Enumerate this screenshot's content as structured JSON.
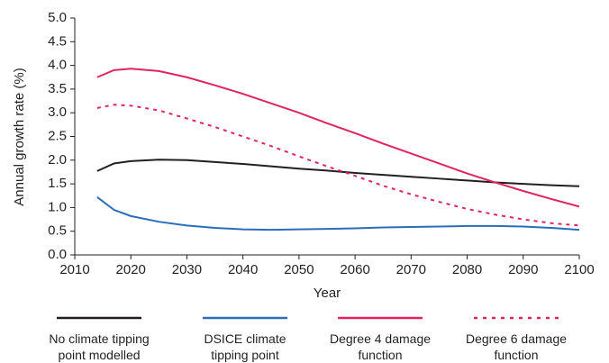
{
  "chart_data": {
    "type": "line",
    "xlabel": "Year",
    "ylabel": "Annual growth rate (%)",
    "x": [
      2014,
      2017,
      2020,
      2025,
      2030,
      2035,
      2040,
      2045,
      2050,
      2055,
      2060,
      2065,
      2070,
      2075,
      2080,
      2085,
      2090,
      2095,
      2100
    ],
    "series": [
      {
        "name": "No climate tipping point modelled",
        "color": "#231f20",
        "dashed": false,
        "values": [
          1.77,
          1.93,
          1.98,
          2.01,
          2.0,
          1.96,
          1.92,
          1.87,
          1.82,
          1.78,
          1.73,
          1.69,
          1.65,
          1.61,
          1.57,
          1.53,
          1.5,
          1.47,
          1.45
        ]
      },
      {
        "name": "DSICE climate tipping point",
        "color": "#2a6ebb",
        "dashed": false,
        "values": [
          1.22,
          0.95,
          0.82,
          0.7,
          0.62,
          0.57,
          0.54,
          0.53,
          0.54,
          0.55,
          0.56,
          0.58,
          0.59,
          0.6,
          0.61,
          0.61,
          0.6,
          0.57,
          0.53
        ]
      },
      {
        "name": "Degree 4 damage function",
        "color": "#e0245e",
        "dashed": false,
        "values": [
          3.75,
          3.9,
          3.93,
          3.88,
          3.75,
          3.58,
          3.4,
          3.2,
          3.0,
          2.78,
          2.57,
          2.35,
          2.14,
          1.93,
          1.72,
          1.53,
          1.35,
          1.18,
          1.02
        ]
      },
      {
        "name": "Degree 6 damage function",
        "color": "#e0245e",
        "dashed": true,
        "values": [
          3.1,
          3.17,
          3.15,
          3.05,
          2.88,
          2.7,
          2.5,
          2.3,
          2.08,
          1.87,
          1.67,
          1.46,
          1.28,
          1.12,
          0.97,
          0.85,
          0.75,
          0.67,
          0.62
        ]
      }
    ],
    "xlim": [
      2010,
      2100
    ],
    "xticks": [
      2010,
      2020,
      2030,
      2040,
      2050,
      2060,
      2070,
      2080,
      2090,
      2100
    ],
    "ylim": [
      0,
      5
    ],
    "yticks": [
      {
        "value": 0,
        "label": "0.0"
      },
      {
        "value": 0.5,
        "label": "0.5"
      },
      {
        "value": 1,
        "label": "1.0"
      },
      {
        "value": 1.5,
        "label": "1.5"
      },
      {
        "value": 2,
        "label": "2.0"
      },
      {
        "value": 2.5,
        "label": "2.5"
      },
      {
        "value": 3,
        "label": "3.0"
      },
      {
        "value": 3.5,
        "label": "3.5"
      },
      {
        "value": 4,
        "label": "4.0"
      },
      {
        "value": 4.5,
        "label": "4.5"
      },
      {
        "value": 5,
        "label": "5.0"
      }
    ],
    "grid": false,
    "legend": "bottom"
  }
}
